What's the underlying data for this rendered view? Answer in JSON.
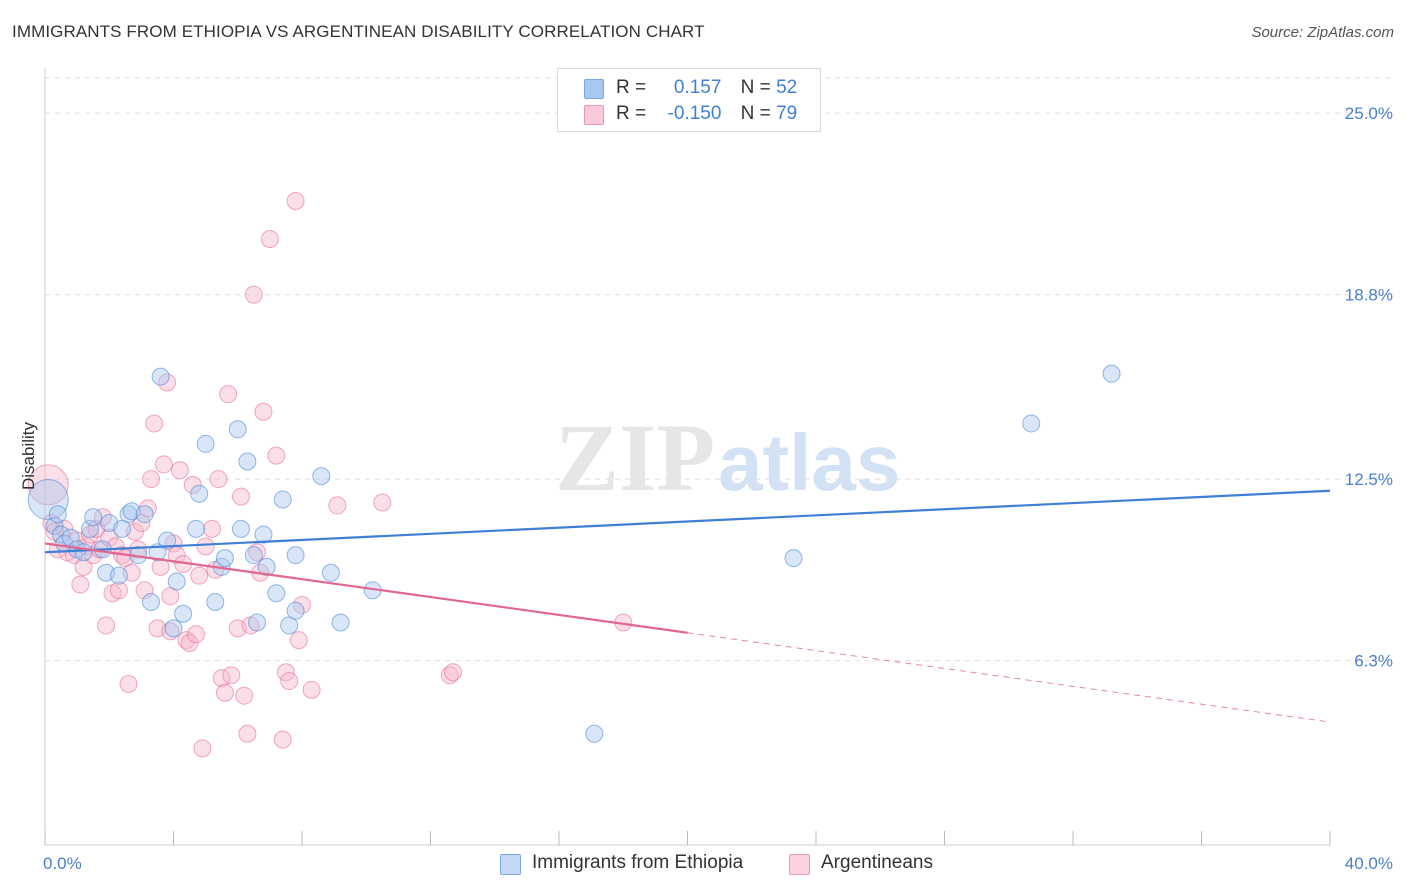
{
  "header": {
    "title": "IMMIGRANTS FROM ETHIOPIA VS ARGENTINEAN DISABILITY CORRELATION CHART",
    "source": "Source: ZipAtlas.com"
  },
  "colors": {
    "blue": "#3f7fd6",
    "blue_fill": "#a9c8f0",
    "pink": "#e2668f",
    "pink_fill": "#f6b7cb",
    "grid": "#dddddd",
    "axis_text": "#4a7fd0"
  },
  "legend": {
    "r_label": "R =",
    "n_label": "N =",
    "blue_r": "0.157",
    "blue_n": "52",
    "pink_r": "-0.150",
    "pink_n": "79"
  },
  "chart_data": {
    "type": "scatter",
    "xlabel": "",
    "ylabel": "Disability",
    "xlim": [
      0,
      40
    ],
    "ylim": [
      0,
      26.2
    ],
    "x_tick_labels": [
      "0.0%",
      "40.0%"
    ],
    "y_ticks": [
      6.3,
      12.5,
      18.8,
      25.0
    ],
    "y_tick_labels": [
      "6.3%",
      "12.5%",
      "18.8%",
      "25.0%"
    ],
    "grid": true,
    "legend_position": "top-center",
    "watermark": "ZIPatlas",
    "series": [
      {
        "name": "Immigrants from Ethiopia",
        "color": "#3f7fd6",
        "fill": "#a9c8f0",
        "r": 0.157,
        "n": 52,
        "trend": {
          "x0": 0,
          "y0": 10.0,
          "x1": 40,
          "y1": 12.1,
          "dashed_from": null
        },
        "points": [
          [
            0.1,
            11.8
          ],
          [
            0.3,
            10.9
          ],
          [
            0.4,
            11.3
          ],
          [
            0.5,
            10.6
          ],
          [
            0.6,
            10.3
          ],
          [
            0.8,
            10.5
          ],
          [
            1.0,
            10.1
          ],
          [
            1.2,
            10.0
          ],
          [
            1.4,
            10.8
          ],
          [
            1.5,
            11.2
          ],
          [
            1.8,
            10.1
          ],
          [
            1.9,
            9.3
          ],
          [
            2.0,
            11.0
          ],
          [
            2.3,
            9.2
          ],
          [
            2.4,
            10.8
          ],
          [
            2.6,
            11.3
          ],
          [
            2.7,
            11.4
          ],
          [
            2.9,
            9.9
          ],
          [
            3.1,
            11.3
          ],
          [
            3.3,
            8.3
          ],
          [
            3.5,
            10.0
          ],
          [
            3.8,
            10.4
          ],
          [
            3.6,
            16.0
          ],
          [
            4.0,
            7.4
          ],
          [
            4.1,
            9.0
          ],
          [
            4.3,
            7.9
          ],
          [
            4.7,
            10.8
          ],
          [
            4.8,
            12.0
          ],
          [
            5.0,
            13.7
          ],
          [
            5.3,
            8.3
          ],
          [
            5.5,
            9.5
          ],
          [
            5.6,
            9.8
          ],
          [
            6.0,
            14.2
          ],
          [
            6.1,
            10.8
          ],
          [
            6.3,
            13.1
          ],
          [
            6.5,
            9.9
          ],
          [
            6.6,
            7.6
          ],
          [
            6.8,
            10.6
          ],
          [
            6.9,
            9.5
          ],
          [
            7.2,
            8.6
          ],
          [
            7.4,
            11.8
          ],
          [
            7.6,
            7.5
          ],
          [
            7.8,
            9.9
          ],
          [
            7.8,
            8.0
          ],
          [
            8.6,
            12.6
          ],
          [
            8.9,
            9.3
          ],
          [
            9.2,
            7.6
          ],
          [
            10.2,
            8.7
          ],
          [
            17.1,
            3.8
          ],
          [
            23.3,
            9.8
          ],
          [
            30.7,
            14.4
          ],
          [
            33.2,
            16.1
          ]
        ]
      },
      {
        "name": "Argentineans",
        "color": "#e2668f",
        "fill": "#f6b7cb",
        "r": -0.15,
        "n": 79,
        "trend": {
          "x0": 0,
          "y0": 10.3,
          "x1": 40,
          "y1": 4.2,
          "dashed_from": 20.0
        },
        "points": [
          [
            0.1,
            12.3
          ],
          [
            0.2,
            11.0
          ],
          [
            0.3,
            10.7
          ],
          [
            0.4,
            10.1
          ],
          [
            0.6,
            10.8
          ],
          [
            0.7,
            10.0
          ],
          [
            0.9,
            9.9
          ],
          [
            1.0,
            10.4
          ],
          [
            1.1,
            8.9
          ],
          [
            1.2,
            9.5
          ],
          [
            1.3,
            10.2
          ],
          [
            1.4,
            10.6
          ],
          [
            1.5,
            9.9
          ],
          [
            1.6,
            10.8
          ],
          [
            1.7,
            10.1
          ],
          [
            1.8,
            11.2
          ],
          [
            1.9,
            7.5
          ],
          [
            2.0,
            10.5
          ],
          [
            2.1,
            8.6
          ],
          [
            2.2,
            10.2
          ],
          [
            2.3,
            8.7
          ],
          [
            2.4,
            9.9
          ],
          [
            2.5,
            9.8
          ],
          [
            2.6,
            5.5
          ],
          [
            2.7,
            9.3
          ],
          [
            2.8,
            10.7
          ],
          [
            2.9,
            10.1
          ],
          [
            3.0,
            11.0
          ],
          [
            3.1,
            8.7
          ],
          [
            3.2,
            11.5
          ],
          [
            3.3,
            12.5
          ],
          [
            3.4,
            14.4
          ],
          [
            3.5,
            7.4
          ],
          [
            3.6,
            9.5
          ],
          [
            3.7,
            13.0
          ],
          [
            3.8,
            15.8
          ],
          [
            3.9,
            7.3
          ],
          [
            4.0,
            10.3
          ],
          [
            4.1,
            9.9
          ],
          [
            4.2,
            12.8
          ],
          [
            4.3,
            9.6
          ],
          [
            4.4,
            7.0
          ],
          [
            4.5,
            6.9
          ],
          [
            4.6,
            12.3
          ],
          [
            4.7,
            7.2
          ],
          [
            4.8,
            9.2
          ],
          [
            4.9,
            3.3
          ],
          [
            5.0,
            10.2
          ],
          [
            5.2,
            10.8
          ],
          [
            5.3,
            9.4
          ],
          [
            5.4,
            12.5
          ],
          [
            5.5,
            5.7
          ],
          [
            5.6,
            5.2
          ],
          [
            5.7,
            15.4
          ],
          [
            5.8,
            5.8
          ],
          [
            6.0,
            7.4
          ],
          [
            6.1,
            11.9
          ],
          [
            6.2,
            5.1
          ],
          [
            6.3,
            3.8
          ],
          [
            6.4,
            7.5
          ],
          [
            6.5,
            18.8
          ],
          [
            6.6,
            10.0
          ],
          [
            6.8,
            14.8
          ],
          [
            7.0,
            20.7
          ],
          [
            7.2,
            13.3
          ],
          [
            7.4,
            3.6
          ],
          [
            7.5,
            5.9
          ],
          [
            7.6,
            5.6
          ],
          [
            7.8,
            22.0
          ],
          [
            8.0,
            8.2
          ],
          [
            7.9,
            7.0
          ],
          [
            8.3,
            5.3
          ],
          [
            9.1,
            11.6
          ],
          [
            10.5,
            11.7
          ],
          [
            12.6,
            5.8
          ],
          [
            12.7,
            5.9
          ],
          [
            18.0,
            7.6
          ],
          [
            6.7,
            9.3
          ],
          [
            3.9,
            8.5
          ]
        ]
      }
    ]
  },
  "bottom_legend": {
    "blue_label": "Immigrants from Ethiopia",
    "pink_label": "Argentineans"
  }
}
